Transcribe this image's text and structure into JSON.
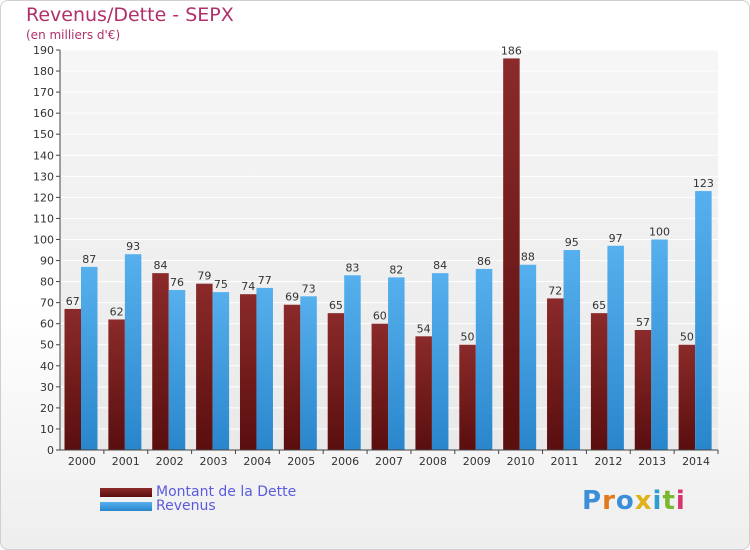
{
  "header": {
    "title": "Revenus/Dette - SEPX",
    "subtitle": "(en milliers d'€)"
  },
  "chart_data": {
    "type": "bar",
    "categories": [
      "2000",
      "2001",
      "2002",
      "2003",
      "2004",
      "2005",
      "2006",
      "2007",
      "2008",
      "2009",
      "2010",
      "2011",
      "2012",
      "2013",
      "2014"
    ],
    "series": [
      {
        "name": "Montant de la Dette",
        "color": "#7a1f1f",
        "values": [
          67,
          62,
          84,
          79,
          74,
          69,
          65,
          60,
          54,
          50,
          186,
          72,
          65,
          57,
          50
        ]
      },
      {
        "name": "Revenus",
        "color": "#3f9de3",
        "values": [
          87,
          93,
          76,
          75,
          77,
          73,
          83,
          82,
          84,
          86,
          88,
          95,
          97,
          100,
          123
        ]
      }
    ],
    "ylim": [
      0,
      190
    ],
    "ytick_step": 10,
    "grid": true,
    "legend_position": "bottom-left"
  },
  "logo": {
    "text": "Proxiti",
    "letters": [
      {
        "ch": "P",
        "color": "#3b8fd8"
      },
      {
        "ch": "r",
        "color": "#e07a1a"
      },
      {
        "ch": "o",
        "color": "#3b8fd8"
      },
      {
        "ch": "x",
        "color": "#e0b21a"
      },
      {
        "ch": "i",
        "color": "#2e9ecf"
      },
      {
        "ch": "t",
        "color": "#7ab82e"
      },
      {
        "ch": "i",
        "color": "#d8346e"
      }
    ]
  }
}
